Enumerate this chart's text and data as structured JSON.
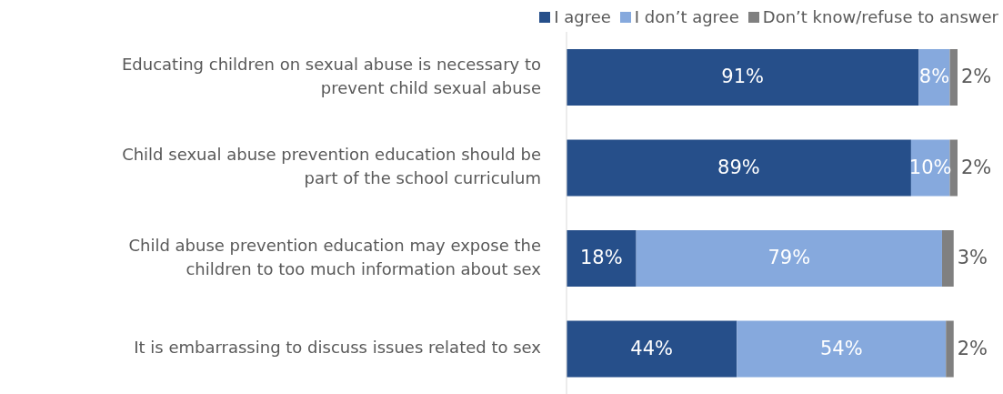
{
  "chart_data": {
    "type": "bar",
    "orientation": "horizontal",
    "stacked": true,
    "legend": "top right",
    "categories": [
      "Educating children on sexual abuse is necessary to prevent child sexual abuse",
      "Child sexual abuse prevention education should be part of the school curriculum",
      "Child abuse prevention education may expose the children to too much information about sex",
      "It is embarrassing to discuss issues related to sex"
    ],
    "series": [
      {
        "name": "I agree",
        "color": "#264f8a",
        "values": [
          91,
          89,
          18,
          44
        ],
        "value_labels": [
          "91%",
          "89%",
          "18%",
          "44%"
        ]
      },
      {
        "name": "I don’t agree",
        "color": "#86a9dd",
        "values": [
          8,
          10,
          79,
          54
        ],
        "value_labels": [
          "8%",
          "10%",
          "79%",
          "54%"
        ]
      },
      {
        "name": "Don’t know/refuse to answer",
        "color": "#808080",
        "values": [
          2,
          2,
          3,
          2
        ],
        "value_labels": [
          "2%",
          "2%",
          "3%",
          "2%"
        ]
      }
    ]
  }
}
